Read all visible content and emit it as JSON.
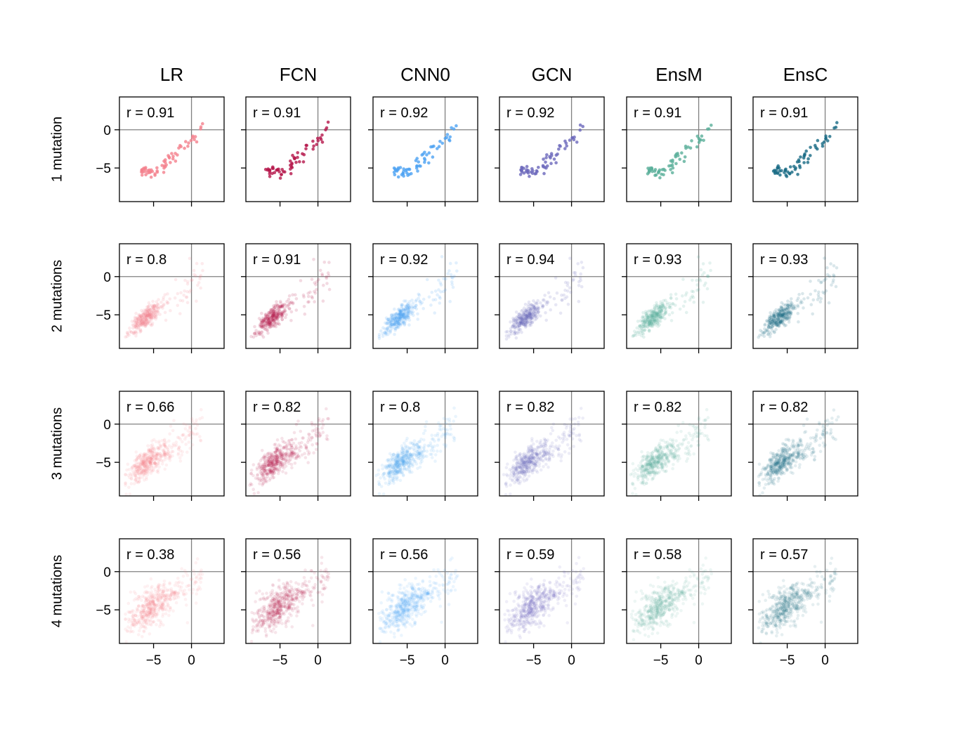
{
  "chart_data": {
    "type": "scatter",
    "models": [
      {
        "name": "LR",
        "color": "#F4808C"
      },
      {
        "name": "FCN",
        "color": "#B5174B"
      },
      {
        "name": "CNN0",
        "color": "#4DA3F2"
      },
      {
        "name": "GCN",
        "color": "#6B68BC"
      },
      {
        "name": "EnsM",
        "color": "#5AAF9A"
      },
      {
        "name": "EnsC",
        "color": "#186A84"
      }
    ],
    "rows": [
      {
        "label": "1 mutation",
        "r": [
          "r = 0.91",
          "r = 0.91",
          "r = 0.92",
          "r = 0.92",
          "r = 0.91",
          "r = 0.91"
        ]
      },
      {
        "label": "2 mutations",
        "r": [
          "r = 0.8",
          "r = 0.91",
          "r = 0.92",
          "r = 0.94",
          "r = 0.93",
          "r = 0.93"
        ]
      },
      {
        "label": "3 mutations",
        "r": [
          "r = 0.66",
          "r = 0.82",
          "r = 0.8",
          "r = 0.82",
          "r = 0.82",
          "r = 0.82"
        ]
      },
      {
        "label": "4 mutations",
        "r": [
          "r = 0.38",
          "r = 0.56",
          "r = 0.56",
          "r = 0.59",
          "r = 0.58",
          "r = 0.57"
        ]
      }
    ],
    "x_ticks": [
      {
        "value": -5,
        "label": "−5"
      },
      {
        "value": 0,
        "label": "0"
      }
    ],
    "y_ticks": [
      {
        "value": -5,
        "label": "−5"
      },
      {
        "value": 0,
        "label": "0"
      }
    ],
    "xlim": [
      -9.5,
      4.3
    ],
    "ylim": [
      -9.4,
      4.3
    ],
    "reference_lines": {
      "x": 0,
      "y": 0,
      "color": "#808080"
    },
    "grid": false
  }
}
